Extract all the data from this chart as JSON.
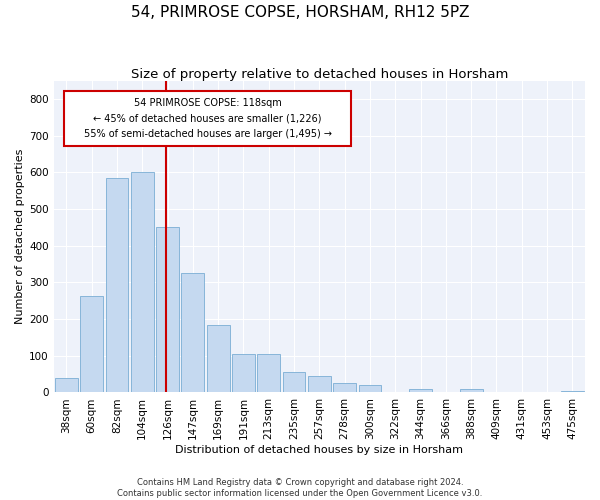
{
  "title": "54, PRIMROSE COPSE, HORSHAM, RH12 5PZ",
  "subtitle": "Size of property relative to detached houses in Horsham",
  "xlabel": "Distribution of detached houses by size in Horsham",
  "ylabel": "Number of detached properties",
  "footer_line1": "Contains HM Land Registry data © Crown copyright and database right 2024.",
  "footer_line2": "Contains public sector information licensed under the Open Government Licence v3.0.",
  "bar_labels": [
    "38sqm",
    "60sqm",
    "82sqm",
    "104sqm",
    "126sqm",
    "147sqm",
    "169sqm",
    "191sqm",
    "213sqm",
    "235sqm",
    "257sqm",
    "278sqm",
    "300sqm",
    "322sqm",
    "344sqm",
    "366sqm",
    "388sqm",
    "409sqm",
    "431sqm",
    "453sqm",
    "475sqm"
  ],
  "bar_values": [
    40,
    263,
    585,
    600,
    450,
    325,
    185,
    105,
    105,
    55,
    45,
    25,
    20,
    0,
    10,
    0,
    10,
    0,
    0,
    0,
    5
  ],
  "bar_color": "#c5d9f0",
  "bar_edge_color": "#7aadd4",
  "vline_color": "#cc0000",
  "annotation_line1": "54 PRIMROSE COPSE: 118sqm",
  "annotation_line2": "← 45% of detached houses are smaller (1,226)",
  "annotation_line3": "55% of semi-detached houses are larger (1,495) →",
  "annotation_box_color": "#cc0000",
  "ylim": [
    0,
    850
  ],
  "yticks": [
    0,
    100,
    200,
    300,
    400,
    500,
    600,
    700,
    800
  ],
  "background_color": "#eef2fa",
  "grid_color": "#ffffff",
  "title_fontsize": 11,
  "subtitle_fontsize": 9.5,
  "axis_label_fontsize": 8,
  "tick_fontsize": 7.5,
  "footer_fontsize": 6
}
